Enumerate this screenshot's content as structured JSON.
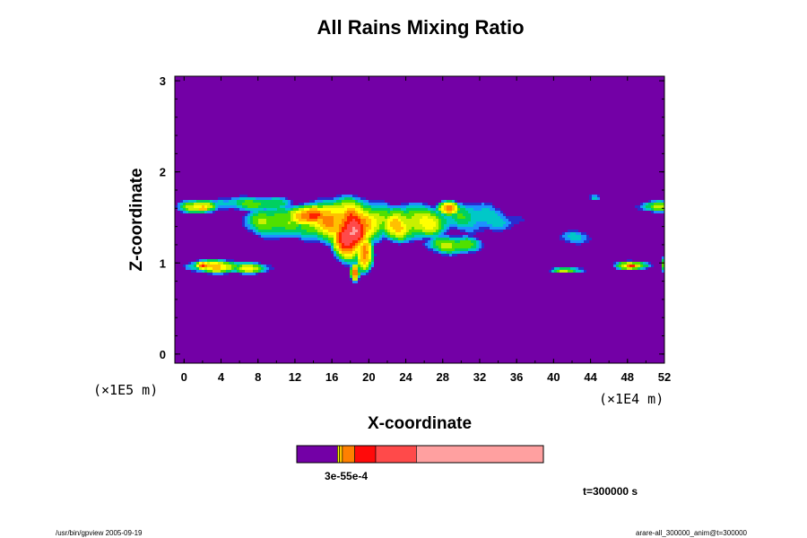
{
  "chart_data": {
    "type": "heatmap",
    "title": "All Rains Mixing Ratio",
    "xlabel": "X-coordinate",
    "ylabel": "Z-coordinate",
    "x_scale_label": "(×1E4 m)",
    "y_scale_label": "(×1E5 m)",
    "x_ticks": [
      "0",
      "4",
      "8",
      "12",
      "16",
      "20",
      "24",
      "28",
      "32",
      "36",
      "40",
      "44",
      "48",
      "52"
    ],
    "y_ticks": [
      "0",
      "1",
      "2",
      "3"
    ],
    "xlim": [
      -1,
      52
    ],
    "ylim": [
      -0.1,
      3.05
    ],
    "background_value": 0,
    "colorbar_label": "3e-55e-4",
    "colors": {
      "background": "#7300a6",
      "levels": [
        "#7300a6",
        "#2b2bd0",
        "#1e90ff",
        "#00c8c8",
        "#00d060",
        "#50e000",
        "#c8f000",
        "#ffff00",
        "#ffc000",
        "#ff8000",
        "#ff2000",
        "#ff4a4a",
        "#ffa0a0"
      ]
    },
    "colorbar_segments": [
      {
        "color": "#7300a6",
        "fraction": 0.165
      },
      {
        "color": "#ffff00",
        "fraction": 0.008
      },
      {
        "color": "#ffc000",
        "fraction": 0.012
      },
      {
        "color": "#ff8000",
        "fraction": 0.05
      },
      {
        "color": "#ff0a0a",
        "fraction": 0.085
      },
      {
        "color": "#ff4a4a",
        "fraction": 0.165
      },
      {
        "color": "#ffa0a0",
        "fraction": 0.515
      }
    ],
    "blobs": [
      {
        "x": 17.5,
        "z": 1.45,
        "rx": 6.5,
        "rz": 0.3,
        "v": 9
      },
      {
        "x": 18.0,
        "z": 1.35,
        "rx": 2.6,
        "rz": 0.4,
        "v": 12
      },
      {
        "x": 13.5,
        "z": 1.52,
        "rx": 3.0,
        "rz": 0.15,
        "v": 10
      },
      {
        "x": 19.5,
        "z": 1.1,
        "rx": 1.2,
        "rz": 0.25,
        "v": 10
      },
      {
        "x": 18.5,
        "z": 0.9,
        "rx": 0.6,
        "rz": 0.12,
        "v": 9
      },
      {
        "x": 25.0,
        "z": 1.45,
        "rx": 5.0,
        "rz": 0.22,
        "v": 7
      },
      {
        "x": 28.5,
        "z": 1.6,
        "rx": 1.6,
        "rz": 0.1,
        "v": 9
      },
      {
        "x": 23.0,
        "z": 1.4,
        "rx": 2.5,
        "rz": 0.2,
        "v": 8
      },
      {
        "x": 29.0,
        "z": 1.2,
        "rx": 3.5,
        "rz": 0.12,
        "v": 6
      },
      {
        "x": 31.0,
        "z": 1.5,
        "rx": 4.5,
        "rz": 0.18,
        "v": 4
      },
      {
        "x": 34.0,
        "z": 1.45,
        "rx": 3.0,
        "rz": 0.1,
        "v": 2
      },
      {
        "x": 10.0,
        "z": 1.45,
        "rx": 4.0,
        "rz": 0.2,
        "v": 6
      },
      {
        "x": 7.5,
        "z": 1.65,
        "rx": 5.0,
        "rz": 0.09,
        "v": 5
      },
      {
        "x": 1.5,
        "z": 1.62,
        "rx": 2.5,
        "rz": 0.09,
        "v": 7
      },
      {
        "x": 2.0,
        "z": 1.6,
        "rx": 1.0,
        "rz": 0.06,
        "v": 9
      },
      {
        "x": 3.5,
        "z": 0.96,
        "rx": 3.5,
        "rz": 0.09,
        "v": 8
      },
      {
        "x": 2.0,
        "z": 0.97,
        "rx": 1.0,
        "rz": 0.06,
        "v": 10
      },
      {
        "x": 7.0,
        "z": 0.94,
        "rx": 3.0,
        "rz": 0.07,
        "v": 6
      },
      {
        "x": 42.5,
        "z": 1.28,
        "rx": 2.2,
        "rz": 0.08,
        "v": 3
      },
      {
        "x": 41.5,
        "z": 0.92,
        "rx": 2.2,
        "rz": 0.03,
        "v": 6
      },
      {
        "x": 48.5,
        "z": 0.97,
        "rx": 2.3,
        "rz": 0.06,
        "v": 7
      },
      {
        "x": 48.5,
        "z": 0.97,
        "rx": 1.0,
        "rz": 0.04,
        "v": 10
      },
      {
        "x": 51.5,
        "z": 1.62,
        "rx": 3.0,
        "rz": 0.07,
        "v": 5
      },
      {
        "x": 44.5,
        "z": 1.72,
        "rx": 0.7,
        "rz": 0.03,
        "v": 3
      },
      {
        "x": 52.0,
        "z": 0.98,
        "rx": 0.4,
        "rz": 0.1,
        "v": 6
      }
    ]
  },
  "annotations": {
    "time": "t=300000 s",
    "footer_left": "/usr/bin/gpview 2005-09-19",
    "footer_right": "arare-all_300000_anim@t=300000"
  }
}
